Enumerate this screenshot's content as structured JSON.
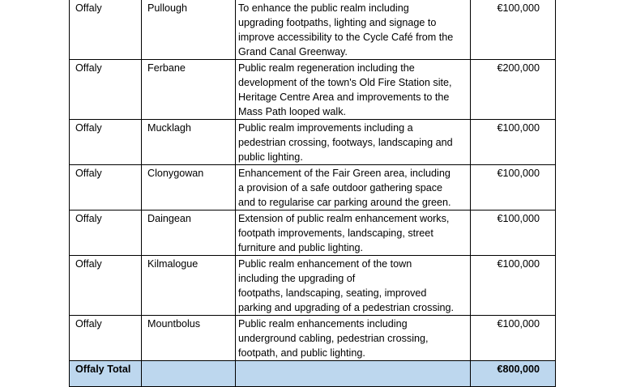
{
  "rows": [
    {
      "county": "Offaly",
      "town": "Pullough",
      "description": [
        "To enhance the public realm including",
        "upgrading footpaths, lighting and signage to",
        "improve accessibility to the Cycle Café from the",
        "Grand Canal Greenway."
      ],
      "amount": "€100,000"
    },
    {
      "county": "Offaly",
      "town": "Ferbane",
      "description": [
        "Public realm regeneration including the",
        "development of the town's Old Fire Station site,",
        "Heritage Centre Area and improvements to the",
        "Mass Path looped walk."
      ],
      "amount": "€200,000"
    },
    {
      "county": "Offaly",
      "town": "Mucklagh",
      "description": [
        "Public realm improvements including a",
        "pedestrian crossing, footways, landscaping and",
        "public lighting."
      ],
      "amount": "€100,000"
    },
    {
      "county": "Offaly",
      "town": "Clonygowan",
      "description": [
        "Enhancement of the Fair Green area, including",
        "a provision of a safe outdoor gathering space",
        "and to regularise car parking around the green."
      ],
      "amount": "€100,000"
    },
    {
      "county": "Offaly",
      "town": "Daingean",
      "description": [
        "Extension of public realm enhancement works,",
        "footpath improvements, landscaping, street",
        "furniture and public lighting."
      ],
      "amount": "€100,000"
    },
    {
      "county": "Offaly",
      "town": "Kilmalogue",
      "description": [
        "Public realm enhancement of the town",
        "including the upgrading of",
        "footpaths, landscaping, seating, improved",
        "parking and upgrading of a pedestrian crossing."
      ],
      "amount": "€100,000"
    },
    {
      "county": "Offaly",
      "town": "Mountbolus",
      "description": [
        "Public realm enhancements including",
        "underground cabling, pedestrian crossing,",
        "footpath, and public lighting."
      ],
      "amount": "€100,000"
    }
  ],
  "total": {
    "label": "Offaly Total",
    "amount": "€800,000"
  }
}
